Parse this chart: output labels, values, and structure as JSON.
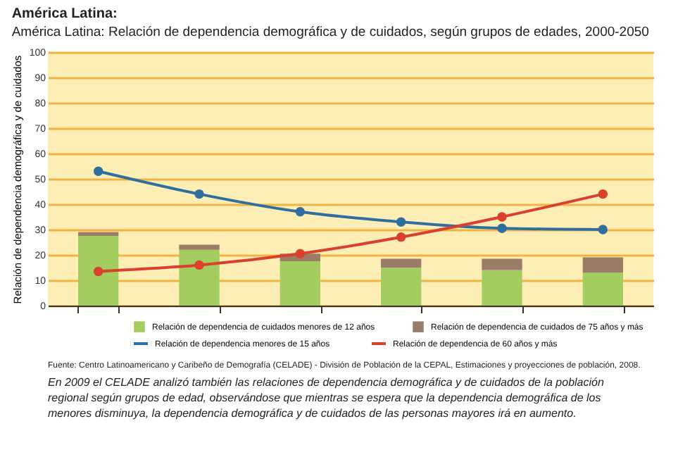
{
  "chart_data": {
    "type": "bar",
    "title": "América Latina:",
    "subtitle": "América Latina: Relación de dependencia demográfica y de cuidados, según grupos de edades, 2000-2050",
    "ylabel": "Relación de dependencia demográfica y de cuidados",
    "categories": [
      null,
      null,
      null,
      null,
      null,
      null
    ],
    "stacked": true,
    "series": [
      {
        "name": "Relación de dependencia de cuidados menores de 12 años",
        "color": "#a3cd5e",
        "values": [
          27.5,
          22,
          17.5,
          15,
          14,
          13
        ]
      },
      {
        "name": "Relación de dependencia de cuidados de 75 años y más",
        "color": "#9a7c68",
        "values": [
          1.5,
          2,
          3,
          3.5,
          4.5,
          6
        ]
      },
      {
        "name": "Relación de dependencia menores de 15 años",
        "type": "line",
        "color": "#2f6f9f",
        "values": [
          53,
          44,
          37,
          33,
          30.5,
          30
        ]
      },
      {
        "name": "Relación de dependencia de 60 años y más",
        "type": "line",
        "color": "#d9402e",
        "values": [
          13.5,
          16,
          20.5,
          27,
          35,
          44
        ]
      }
    ],
    "ylim": [
      0,
      100
    ],
    "yticks": [
      0,
      10,
      20,
      30,
      40,
      50,
      60,
      70,
      80,
      90,
      100
    ],
    "grid": "y",
    "legend": "bottom",
    "tick_labels": "y",
    "marker": "circle",
    "line_style": "solid",
    "annotations": [
      "Fuente: Centro Latinoamericano y Caribeño de Demografía (CELADE) - División de Población de la CEPAL, Estimaciones y proyecciones de población, 2008.",
      "En 2009 el CELADE analizó también las relaciones de dependencia demográfica y de cuidados de la población regional según grupos de edad, observándose que mientras se espera que la dependencia demográfica de los menores disminuya, la dependencia demográfica y de cuidados de las personas mayores irá en aumento."
    ]
  }
}
